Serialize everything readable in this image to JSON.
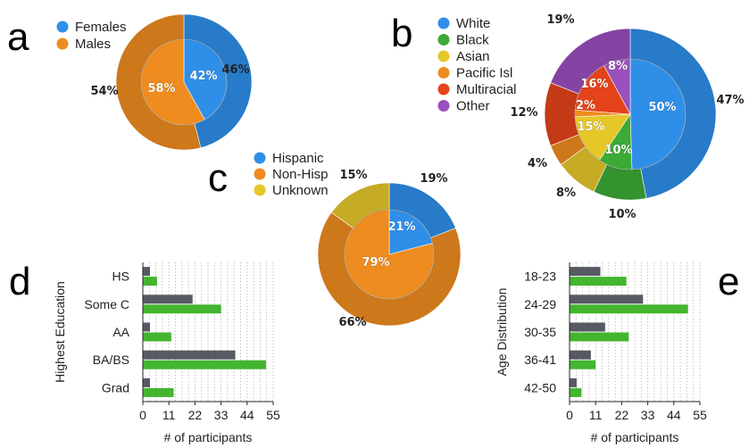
{
  "panel_letters": {
    "a": "a",
    "b": "b",
    "c": "c",
    "d": "d",
    "e": "e"
  },
  "colors": {
    "blue": "#2f8fe8",
    "blue_outer": "#2366c4",
    "orange": "#ee8c1f",
    "orange_outer": "#de7216",
    "green": "#3caa37",
    "green_outer": "#2c9a2a",
    "yellow": "#e6c72a",
    "yellow_outer": "#d8b420",
    "red": "#e54319",
    "red_outer": "#c73513",
    "purple": "#9b4fbd",
    "purple_outer": "#8640a8",
    "bar_gray": "#555a63",
    "bar_green": "#43b52f"
  },
  "chart_data": [
    {
      "id": "a",
      "type": "pie",
      "subtype": "nested-donut",
      "legend": [
        "Females",
        "Males"
      ],
      "legend_colors": [
        "#2f8fe8",
        "#ee8c1f"
      ],
      "outer": {
        "values": [
          46,
          54
        ],
        "labels": [
          "46%",
          "54%"
        ]
      },
      "inner": {
        "values": [
          42,
          58
        ],
        "labels": [
          "42%",
          "58%"
        ]
      }
    },
    {
      "id": "b",
      "type": "pie",
      "subtype": "nested-donut",
      "legend": [
        "White",
        "Black",
        "Asian",
        "Pacific Isl",
        "Multiracial",
        "Other"
      ],
      "legend_colors": [
        "#2f8fe8",
        "#3caa37",
        "#e6c72a",
        "#ee8c1f",
        "#e54319",
        "#9b4fbd"
      ],
      "outer": {
        "values": [
          47,
          10,
          8,
          4,
          12,
          19
        ],
        "labels": [
          "47%",
          "10%",
          "8%",
          "4%",
          "12%",
          "19%"
        ]
      },
      "inner": {
        "values": [
          50,
          10,
          15,
          2,
          16,
          8
        ],
        "labels": [
          "50%",
          "10%",
          "15%",
          "2%",
          "16%",
          "8%"
        ]
      }
    },
    {
      "id": "c",
      "type": "pie",
      "subtype": "nested-donut",
      "legend": [
        "Hispanic",
        "Non-Hisp",
        "Unknown"
      ],
      "legend_colors": [
        "#2f8fe8",
        "#ee8c1f",
        "#e6c72a"
      ],
      "outer": {
        "values": [
          19,
          66,
          15
        ],
        "labels": [
          "19%",
          "66%",
          "15%"
        ]
      },
      "inner": {
        "values": [
          21,
          79,
          0
        ],
        "labels": [
          "21%",
          "79%",
          ""
        ]
      }
    },
    {
      "id": "d",
      "type": "bar",
      "orientation": "horizontal",
      "ylabel": "Highest Education",
      "xlabel": "# of participants",
      "categories": [
        "HS",
        "Some C",
        "AA",
        "BA/BS",
        "Grad"
      ],
      "xticks": [
        0,
        11,
        22,
        33,
        44,
        55
      ],
      "xlim": [
        0,
        55
      ],
      "grid": true,
      "series": [
        {
          "values": [
            3,
            21,
            3,
            39,
            3
          ],
          "color": "#555a63"
        },
        {
          "values": [
            6,
            33,
            12,
            52,
            13
          ],
          "color": "#43b52f"
        }
      ]
    },
    {
      "id": "e",
      "type": "bar",
      "orientation": "horizontal",
      "ylabel": "Age Distribution",
      "xlabel": "# of participants",
      "categories": [
        "18-23",
        "24-29",
        "30-35",
        "36-41",
        "42-50"
      ],
      "xticks": [
        0,
        11,
        22,
        33,
        44,
        55
      ],
      "xlim": [
        0,
        55
      ],
      "grid": true,
      "series": [
        {
          "values": [
            13,
            31,
            15,
            9,
            3
          ],
          "color": "#555a63"
        },
        {
          "values": [
            24,
            50,
            25,
            11,
            5
          ],
          "color": "#43b52f"
        }
      ]
    }
  ]
}
